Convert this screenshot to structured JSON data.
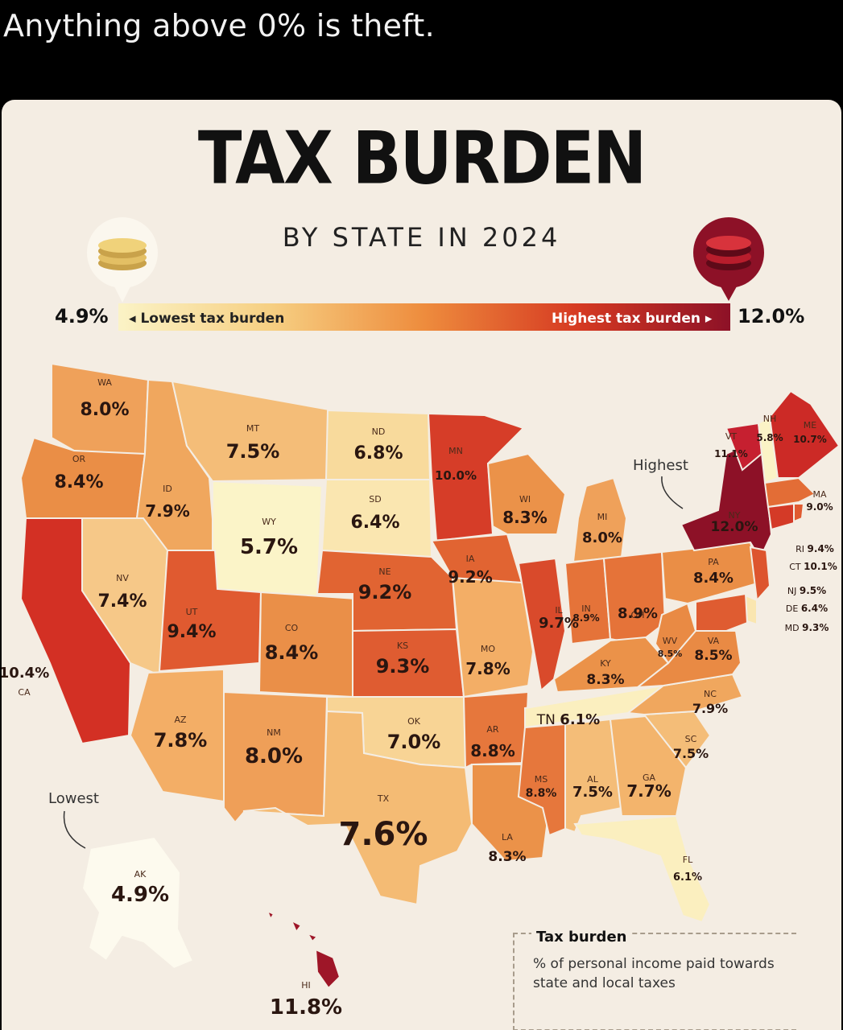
{
  "caption": "Anything above 0% is theft.",
  "title": "TAX BURDEN",
  "subtitle": "BY STATE IN 2024",
  "scale": {
    "min_value": "4.9%",
    "max_value": "12.0%",
    "low_label": "◂ Lowest tax burden",
    "high_label": "Highest tax burden ▸",
    "colors": [
      "#fbf3c6",
      "#f6cf82",
      "#ee8c3d",
      "#d63a22",
      "#8d1127"
    ]
  },
  "annotations": {
    "highest": "Highest",
    "lowest": "Lowest"
  },
  "legend": {
    "title": "Tax burden",
    "description": "% of personal income paid towards state and local taxes"
  },
  "icons": {
    "low": "coin-stack-icon",
    "high": "red-coin-stack-icon"
  },
  "states": [
    {
      "abbr": "WA",
      "value": "8.0%",
      "fill": "#efa15a"
    },
    {
      "abbr": "OR",
      "value": "8.4%",
      "fill": "#ea8e46"
    },
    {
      "abbr": "CA",
      "value": "10.4%",
      "fill": "#d33024"
    },
    {
      "abbr": "ID",
      "value": "7.9%",
      "fill": "#f0a75e"
    },
    {
      "abbr": "NV",
      "value": "7.4%",
      "fill": "#f6c888"
    },
    {
      "abbr": "MT",
      "value": "7.5%",
      "fill": "#f4bd78"
    },
    {
      "abbr": "WY",
      "value": "5.7%",
      "fill": "#fbf4c8"
    },
    {
      "abbr": "UT",
      "value": "9.4%",
      "fill": "#e05a30"
    },
    {
      "abbr": "AZ",
      "value": "7.8%",
      "fill": "#f3ae66"
    },
    {
      "abbr": "CO",
      "value": "8.4%",
      "fill": "#ea8f48"
    },
    {
      "abbr": "NM",
      "value": "8.0%",
      "fill": "#ef9f58"
    },
    {
      "abbr": "ND",
      "value": "6.8%",
      "fill": "#f8da9c"
    },
    {
      "abbr": "SD",
      "value": "6.4%",
      "fill": "#fae6b0"
    },
    {
      "abbr": "NE",
      "value": "9.2%",
      "fill": "#e16432"
    },
    {
      "abbr": "KS",
      "value": "9.3%",
      "fill": "#df5c31"
    },
    {
      "abbr": "OK",
      "value": "7.0%",
      "fill": "#f8d495"
    },
    {
      "abbr": "TX",
      "value": "7.6%",
      "fill": "#f4bb74"
    },
    {
      "abbr": "MN",
      "value": "10.0%",
      "fill": "#d63d28"
    },
    {
      "abbr": "IA",
      "value": "9.2%",
      "fill": "#e16432"
    },
    {
      "abbr": "MO",
      "value": "7.8%",
      "fill": "#f3ae66"
    },
    {
      "abbr": "AR",
      "value": "8.8%",
      "fill": "#e6773c"
    },
    {
      "abbr": "LA",
      "value": "8.3%",
      "fill": "#eb9249"
    },
    {
      "abbr": "WI",
      "value": "8.3%",
      "fill": "#eb9249"
    },
    {
      "abbr": "IL",
      "value": "9.7%",
      "fill": "#d94a2b"
    },
    {
      "abbr": "MI",
      "value": "8.0%",
      "fill": "#efa15a"
    },
    {
      "abbr": "IN",
      "value": "8.9%",
      "fill": "#e57339"
    },
    {
      "abbr": "OH",
      "value": "8.9%",
      "fill": "#e57339"
    },
    {
      "abbr": "KY",
      "value": "8.3%",
      "fill": "#eb9249"
    },
    {
      "abbr": "TN",
      "value": "6.1%",
      "fill": "#fbefbf"
    },
    {
      "abbr": "MS",
      "value": "8.8%",
      "fill": "#e6773c"
    },
    {
      "abbr": "AL",
      "value": "7.5%",
      "fill": "#f4bd78"
    },
    {
      "abbr": "GA",
      "value": "7.7%",
      "fill": "#f3b46c"
    },
    {
      "abbr": "FL",
      "value": "6.1%",
      "fill": "#fbefbf"
    },
    {
      "abbr": "SC",
      "value": "7.5%",
      "fill": "#f4bd78"
    },
    {
      "abbr": "NC",
      "value": "7.9%",
      "fill": "#f0a75e"
    },
    {
      "abbr": "VA",
      "value": "8.5%",
      "fill": "#e98a44"
    },
    {
      "abbr": "WV",
      "value": "8.5%",
      "fill": "#e98a44"
    },
    {
      "abbr": "PA",
      "value": "8.4%",
      "fill": "#ea8e46"
    },
    {
      "abbr": "NY",
      "value": "12.0%",
      "fill": "#8d1127"
    },
    {
      "abbr": "VT",
      "value": "11.1%",
      "fill": "#c62030"
    },
    {
      "abbr": "NH",
      "value": "5.8%",
      "fill": "#fbf3c6"
    },
    {
      "abbr": "ME",
      "value": "10.7%",
      "fill": "#cc2a26"
    },
    {
      "abbr": "MA",
      "value": "9.0%",
      "fill": "#e36d36"
    },
    {
      "abbr": "RI",
      "value": "9.4%",
      "fill": "#e05a30"
    },
    {
      "abbr": "CT",
      "value": "10.1%",
      "fill": "#d43a27"
    },
    {
      "abbr": "NJ",
      "value": "9.5%",
      "fill": "#dd552e"
    },
    {
      "abbr": "DE",
      "value": "6.4%",
      "fill": "#fae6b0"
    },
    {
      "abbr": "MD",
      "value": "9.3%",
      "fill": "#df5c31"
    },
    {
      "abbr": "AK",
      "value": "4.9%",
      "fill": "#fdfaee"
    },
    {
      "abbr": "HI",
      "value": "11.8%",
      "fill": "#9e1628"
    }
  ]
}
